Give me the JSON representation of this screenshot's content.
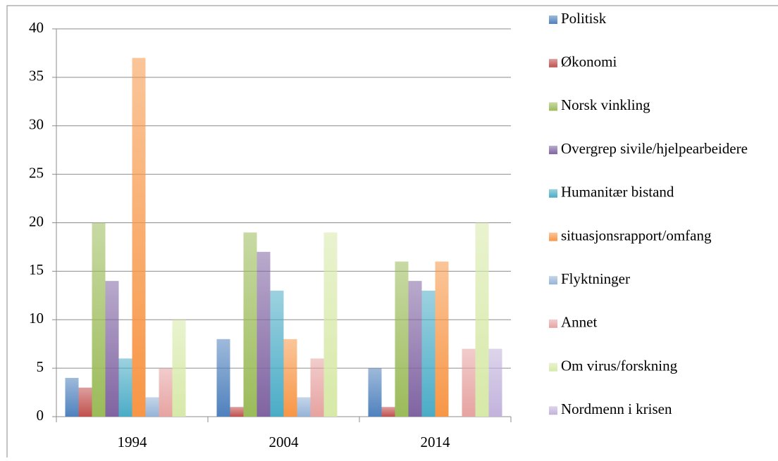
{
  "chart_data": {
    "type": "bar",
    "categories": [
      "1994",
      "2004",
      "2014"
    ],
    "series": [
      {
        "name": "Politisk",
        "color": "#4f81bd",
        "values": [
          4,
          8,
          5
        ]
      },
      {
        "name": "Økonomi",
        "color": "#c0504d",
        "values": [
          3,
          1,
          1
        ]
      },
      {
        "name": "Norsk vinkling",
        "color": "#9bbb59",
        "values": [
          20,
          19,
          16
        ]
      },
      {
        "name": "Overgrep sivile/hjelpearbeidere",
        "color": "#8064a2",
        "values": [
          14,
          17,
          14
        ]
      },
      {
        "name": "Humanitær bistand",
        "color": "#4bacc6",
        "values": [
          6,
          13,
          13
        ]
      },
      {
        "name": "situasjonsrapport/omfang",
        "color": "#f79646",
        "values": [
          37,
          8,
          16
        ]
      },
      {
        "name": "Flyktninger",
        "color": "#95b3d7",
        "values": [
          2,
          2,
          0
        ]
      },
      {
        "name": "Annet",
        "color": "#e6a3a1",
        "values": [
          5,
          6,
          7
        ]
      },
      {
        "name": "Om virus/forskning",
        "color": "#d7e9a8",
        "values": [
          10,
          19,
          20
        ]
      },
      {
        "name": "Nordmenn i krisen",
        "color": "#c2b2dc",
        "values": [
          0,
          0,
          7
        ]
      }
    ],
    "ylim": [
      0,
      40
    ],
    "yticks": [
      0,
      5,
      10,
      15,
      20,
      25,
      30,
      35,
      40
    ],
    "grid": true,
    "legend": "right"
  }
}
